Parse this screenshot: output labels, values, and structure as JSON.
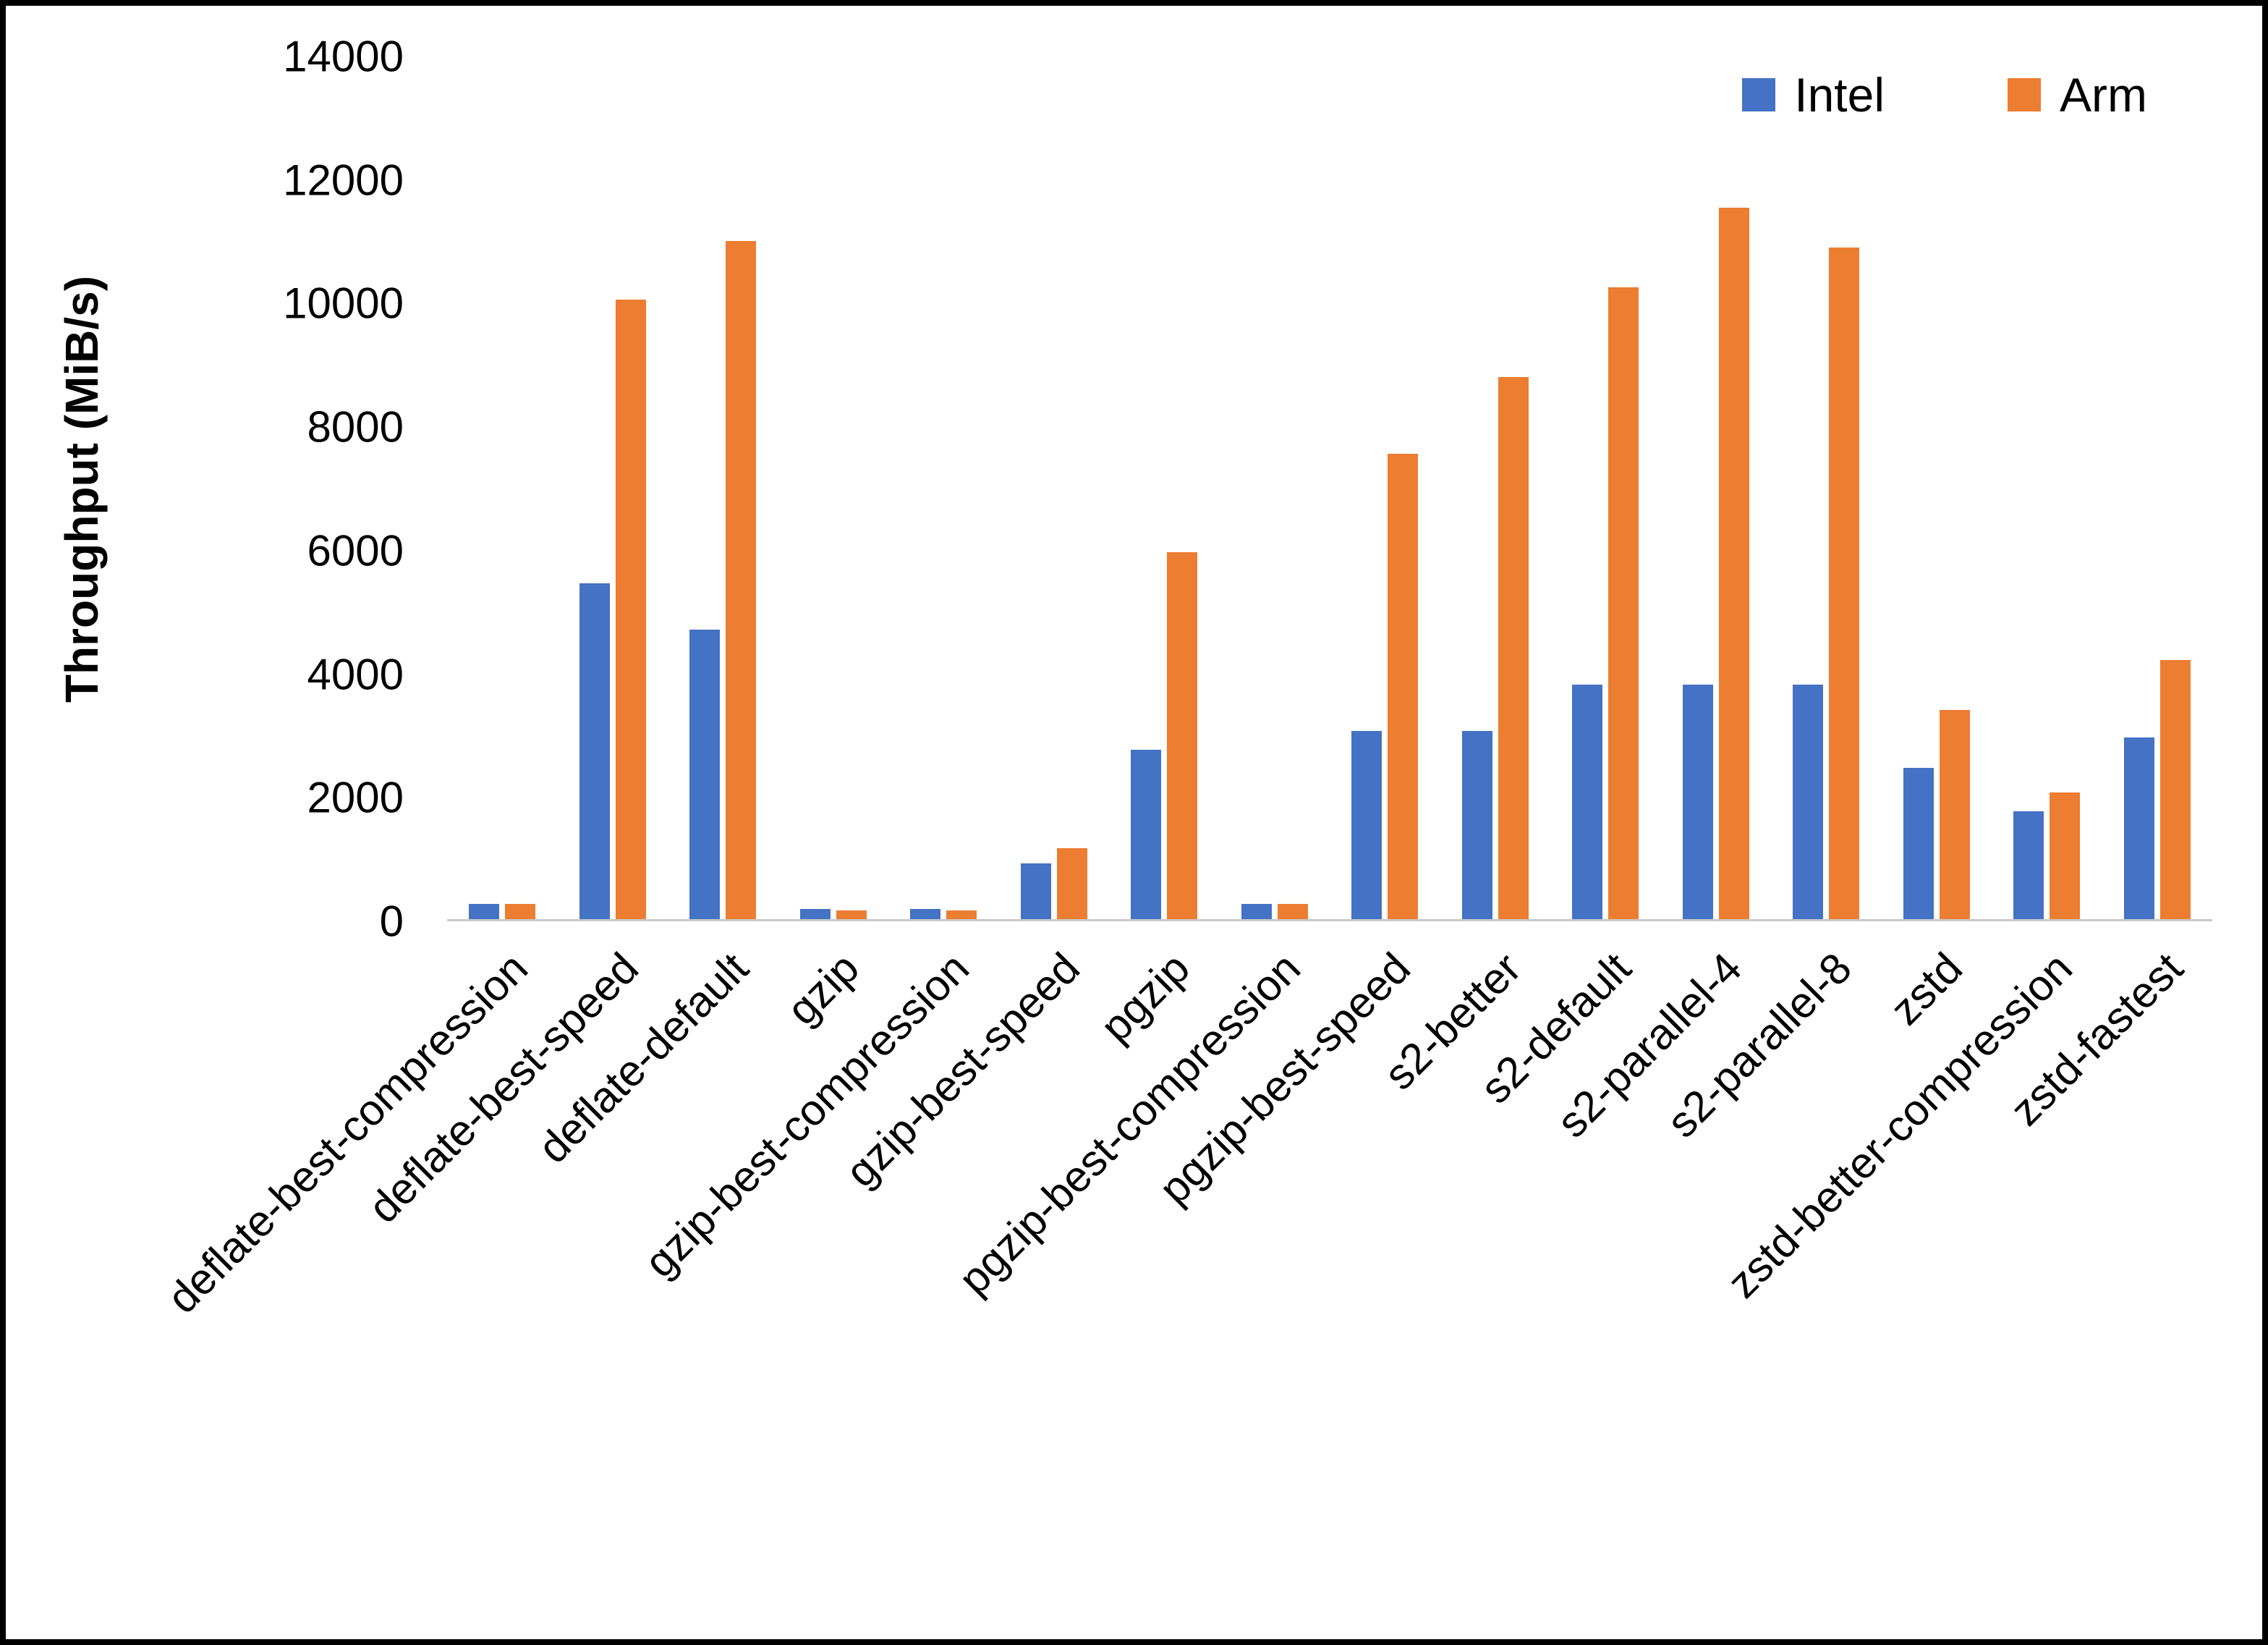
{
  "chart_data": {
    "type": "bar",
    "title": "",
    "xlabel": "",
    "ylabel": "Throughput (MiB/s)",
    "ylim": [
      0,
      14000
    ],
    "yticks": [
      0,
      2000,
      4000,
      6000,
      8000,
      10000,
      12000,
      14000
    ],
    "grid": false,
    "legend_position": "top-right",
    "categories": [
      "deflate-best-compression",
      "deflate-best-speed",
      "deflate-default",
      "gzip",
      "gzip-best-compression",
      "gzip-best-speed",
      "pgzip",
      "pgzip-best-compression",
      "pgzip-best-speed",
      "s2-better",
      "s2-default",
      "s2-parallel-4",
      "s2-parallel-8",
      "zstd",
      "zstd-better-compression",
      "zstd-fastest"
    ],
    "series": [
      {
        "name": "Intel",
        "color": "#4472C4",
        "values": [
          250,
          5450,
          4700,
          160,
          160,
          900,
          2750,
          250,
          3050,
          3050,
          3800,
          3800,
          3800,
          2450,
          1750,
          2950
        ]
      },
      {
        "name": "Arm",
        "color": "#ED7D31",
        "values": [
          250,
          10050,
          11000,
          140,
          140,
          1150,
          5950,
          250,
          7550,
          8800,
          10250,
          11550,
          10900,
          3400,
          2050,
          4200
        ]
      }
    ]
  }
}
